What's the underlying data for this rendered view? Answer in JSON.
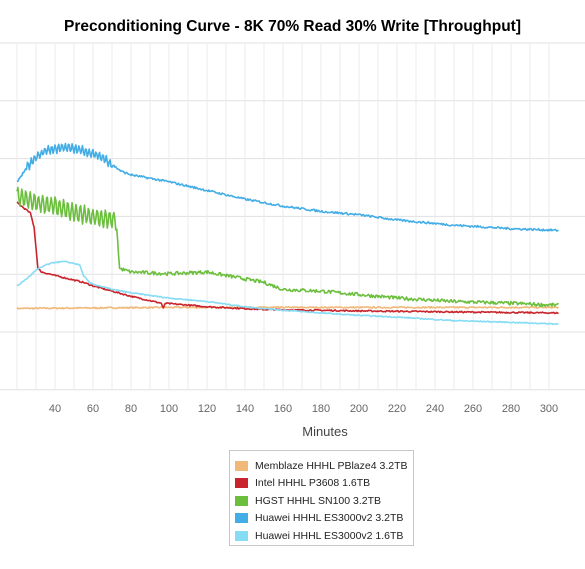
{
  "chart_data": {
    "type": "line",
    "title": "Preconditioning Curve - 8K 70% Read 30% Write [Throughput]",
    "xlabel": "Minutes",
    "ylabel": "",
    "xlim": [
      20,
      305
    ],
    "ylim": [
      0,
      1
    ],
    "x_ticks": [
      40,
      60,
      80,
      100,
      120,
      140,
      160,
      180,
      200,
      220,
      240,
      260,
      280,
      300
    ],
    "grid": true,
    "legend_position": "bottom-center",
    "series": [
      {
        "name": "Memblaze HHHL PBlaze4 3.2TB",
        "color": "#f0b97a",
        "noise": 0.002,
        "points": [
          [
            20,
            0.235
          ],
          [
            100,
            0.238
          ],
          [
            200,
            0.238
          ],
          [
            305,
            0.238
          ]
        ]
      },
      {
        "name": "Intel HHHL P3608 1.6TB",
        "color": "#c9252c",
        "noise": 0.002,
        "points": [
          [
            20,
            0.54
          ],
          [
            27,
            0.51
          ],
          [
            29,
            0.47
          ],
          [
            30,
            0.41
          ],
          [
            31,
            0.35
          ],
          [
            33,
            0.34
          ],
          [
            40,
            0.33
          ],
          [
            55,
            0.31
          ],
          [
            60,
            0.3
          ],
          [
            80,
            0.27
          ],
          [
            96,
            0.25
          ],
          [
            97,
            0.235
          ],
          [
            98,
            0.25
          ],
          [
            120,
            0.24
          ],
          [
            150,
            0.232
          ],
          [
            200,
            0.228
          ],
          [
            250,
            0.225
          ],
          [
            305,
            0.222
          ]
        ]
      },
      {
        "name": "HGST HHHL SN100 3.2TB",
        "color": "#6bbf3d",
        "noise": 0.005,
        "osc": [
          [
            20,
            72,
            0.025,
            2.2
          ]
        ],
        "points": [
          [
            20,
            0.56
          ],
          [
            25,
            0.55
          ],
          [
            30,
            0.54
          ],
          [
            40,
            0.53
          ],
          [
            50,
            0.51
          ],
          [
            60,
            0.5
          ],
          [
            70,
            0.49
          ],
          [
            72,
            0.49
          ],
          [
            73,
            0.43
          ],
          [
            74,
            0.35
          ],
          [
            80,
            0.34
          ],
          [
            100,
            0.335
          ],
          [
            120,
            0.34
          ],
          [
            130,
            0.33
          ],
          [
            140,
            0.32
          ],
          [
            150,
            0.31
          ],
          [
            160,
            0.29
          ],
          [
            180,
            0.285
          ],
          [
            200,
            0.275
          ],
          [
            220,
            0.265
          ],
          [
            250,
            0.255
          ],
          [
            280,
            0.25
          ],
          [
            300,
            0.245
          ],
          [
            305,
            0.245
          ]
        ]
      },
      {
        "name": "Huawei HHHL ES3000v2 3.2TB",
        "color": "#43ade6",
        "noise": 0.003,
        "osc": [
          [
            25,
            70,
            0.012,
            1.8
          ]
        ],
        "points": [
          [
            20,
            0.6
          ],
          [
            25,
            0.64
          ],
          [
            30,
            0.67
          ],
          [
            35,
            0.69
          ],
          [
            40,
            0.695
          ],
          [
            45,
            0.7
          ],
          [
            50,
            0.695
          ],
          [
            55,
            0.69
          ],
          [
            60,
            0.68
          ],
          [
            65,
            0.67
          ],
          [
            70,
            0.65
          ],
          [
            75,
            0.63
          ],
          [
            80,
            0.62
          ],
          [
            100,
            0.6
          ],
          [
            120,
            0.575
          ],
          [
            140,
            0.55
          ],
          [
            160,
            0.53
          ],
          [
            180,
            0.515
          ],
          [
            200,
            0.505
          ],
          [
            220,
            0.49
          ],
          [
            250,
            0.475
          ],
          [
            280,
            0.465
          ],
          [
            305,
            0.46
          ]
        ]
      },
      {
        "name": "Huawei HHHL ES3000v2 1.6TB",
        "color": "#86dcf5",
        "noise": 0.0015,
        "points": [
          [
            20,
            0.3
          ],
          [
            25,
            0.32
          ],
          [
            30,
            0.345
          ],
          [
            35,
            0.36
          ],
          [
            40,
            0.368
          ],
          [
            45,
            0.37
          ],
          [
            50,
            0.365
          ],
          [
            53,
            0.36
          ],
          [
            55,
            0.33
          ],
          [
            58,
            0.31
          ],
          [
            60,
            0.305
          ],
          [
            70,
            0.29
          ],
          [
            80,
            0.28
          ],
          [
            100,
            0.265
          ],
          [
            120,
            0.255
          ],
          [
            140,
            0.24
          ],
          [
            160,
            0.23
          ],
          [
            180,
            0.222
          ],
          [
            200,
            0.215
          ],
          [
            220,
            0.21
          ],
          [
            250,
            0.2
          ],
          [
            280,
            0.195
          ],
          [
            305,
            0.19
          ]
        ]
      }
    ]
  }
}
